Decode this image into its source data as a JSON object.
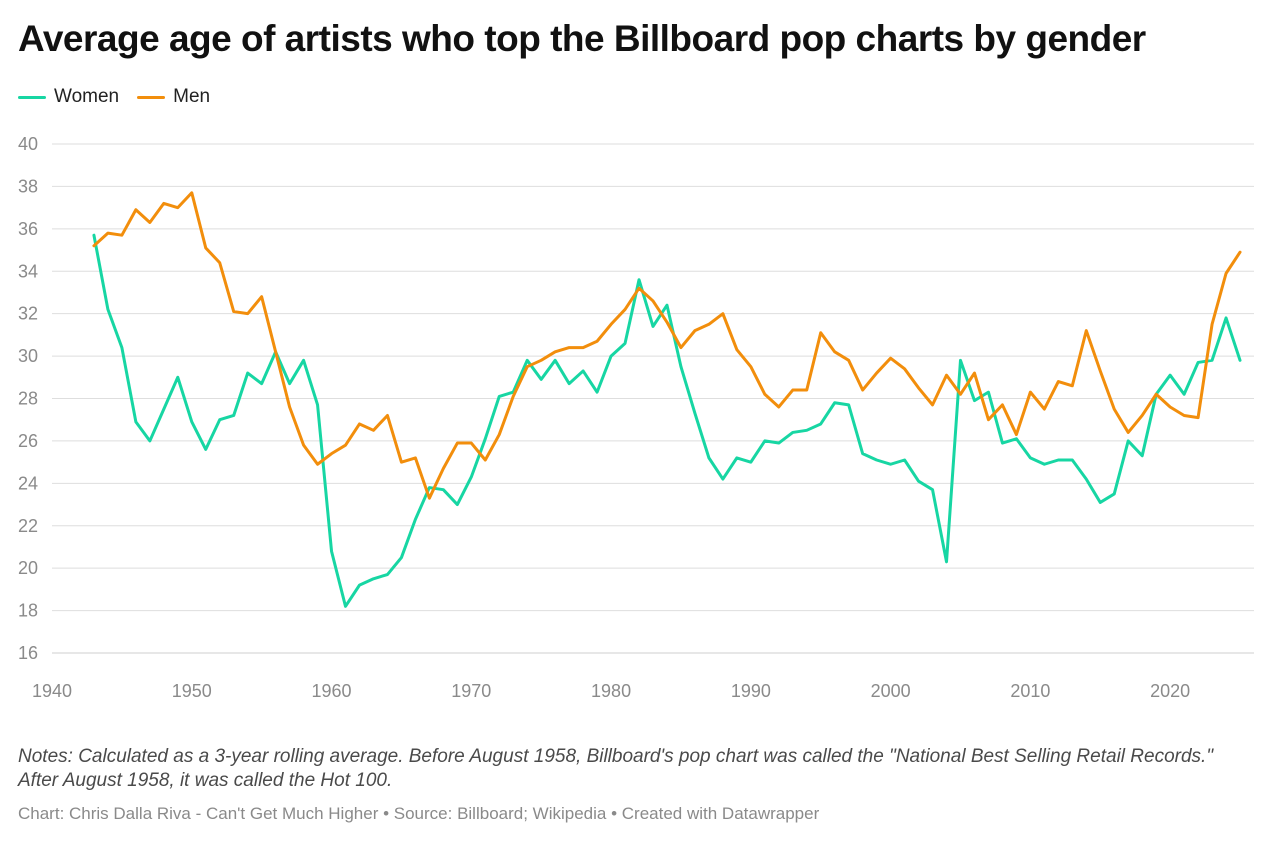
{
  "title": "Average age of artists who top the Billboard pop charts by gender",
  "legend": [
    {
      "label": "Women",
      "color": "#17d6a3"
    },
    {
      "label": "Men",
      "color": "#f28e0c"
    }
  ],
  "notes": "Notes: Calculated as a 3-year rolling average. Before August 1958, Billboard's pop chart was called the \"National Best Selling Retail Records.\" After August 1958, it was called the Hot 100.",
  "credit": "Chart: Chris Dalla Riva - Can't Get Much Higher • Source: Billboard; Wikipedia • Created with Datawrapper",
  "chart_data": {
    "type": "line",
    "title": "Average age of artists who top the Billboard pop charts by gender",
    "xlabel": "",
    "ylabel": "",
    "xlim": [
      1940,
      2026
    ],
    "ylim": [
      16,
      40
    ],
    "x_ticks": [
      1940,
      1950,
      1960,
      1970,
      1980,
      1990,
      2000,
      2010,
      2020
    ],
    "y_ticks": [
      16,
      18,
      20,
      22,
      24,
      26,
      28,
      30,
      32,
      34,
      36,
      38,
      40
    ],
    "grid": "horizontal",
    "legend_position": "top-left",
    "series": [
      {
        "name": "Women",
        "color": "#17d6a3",
        "x": [
          1943,
          1944,
          1945,
          1946,
          1947,
          1948,
          1949,
          1950,
          1951,
          1952,
          1953,
          1954,
          1955,
          1956,
          1957,
          1958,
          1959,
          1960,
          1961,
          1962,
          1963,
          1964,
          1965,
          1966,
          1967,
          1968,
          1969,
          1970,
          1971,
          1972,
          1973,
          1974,
          1975,
          1976,
          1977,
          1978,
          1979,
          1980,
          1981,
          1982,
          1983,
          1984,
          1985,
          1986,
          1987,
          1988,
          1989,
          1990,
          1991,
          1992,
          1993,
          1994,
          1995,
          1996,
          1997,
          1998,
          1999,
          2000,
          2001,
          2002,
          2003,
          2004,
          2005,
          2006,
          2007,
          2008,
          2009,
          2010,
          2011,
          2012,
          2013,
          2014,
          2015,
          2016,
          2017,
          2018,
          2019,
          2020,
          2021,
          2022,
          2023,
          2024,
          2025
        ],
        "values": [
          35.7,
          32.2,
          30.4,
          26.9,
          26.0,
          27.5,
          29.0,
          26.9,
          25.6,
          27.0,
          27.2,
          29.2,
          28.7,
          30.2,
          28.7,
          29.8,
          27.7,
          20.8,
          18.2,
          19.2,
          19.5,
          19.7,
          20.5,
          22.3,
          23.8,
          23.7,
          23.0,
          24.3,
          26.1,
          28.1,
          28.3,
          29.8,
          28.9,
          29.8,
          28.7,
          29.3,
          28.3,
          30.0,
          30.6,
          33.6,
          31.4,
          32.4,
          29.5,
          27.3,
          25.2,
          24.2,
          25.2,
          25.0,
          26.0,
          25.9,
          26.4,
          26.5,
          26.8,
          27.8,
          27.7,
          25.4,
          25.1,
          24.9,
          25.1,
          24.1,
          23.7,
          20.3,
          29.8,
          27.9,
          28.3,
          25.9,
          26.1,
          25.2,
          24.9,
          25.1,
          25.1,
          24.2,
          23.1,
          23.5,
          26.0,
          25.3,
          28.2,
          29.1,
          28.2,
          29.7,
          29.8,
          31.8,
          29.8
        ]
      },
      {
        "name": "Men",
        "color": "#f28e0c",
        "x": [
          1943,
          1944,
          1945,
          1946,
          1947,
          1948,
          1949,
          1950,
          1951,
          1952,
          1953,
          1954,
          1955,
          1956,
          1957,
          1958,
          1959,
          1960,
          1961,
          1962,
          1963,
          1964,
          1965,
          1966,
          1967,
          1968,
          1969,
          1970,
          1971,
          1972,
          1973,
          1974,
          1975,
          1976,
          1977,
          1978,
          1979,
          1980,
          1981,
          1982,
          1983,
          1984,
          1985,
          1986,
          1987,
          1988,
          1989,
          1990,
          1991,
          1992,
          1993,
          1994,
          1995,
          1996,
          1997,
          1998,
          1999,
          2000,
          2001,
          2002,
          2003,
          2004,
          2005,
          2006,
          2007,
          2008,
          2009,
          2010,
          2011,
          2012,
          2013,
          2014,
          2015,
          2016,
          2017,
          2018,
          2019,
          2020,
          2021,
          2022,
          2023,
          2024,
          2025
        ],
        "values": [
          35.2,
          35.8,
          35.7,
          36.9,
          36.3,
          37.2,
          37.0,
          37.7,
          35.1,
          34.4,
          32.1,
          32.0,
          32.8,
          30.2,
          27.6,
          25.8,
          24.9,
          25.4,
          25.8,
          26.8,
          26.5,
          27.2,
          25.0,
          25.2,
          23.3,
          24.7,
          25.9,
          25.9,
          25.1,
          26.3,
          28.1,
          29.5,
          29.8,
          30.2,
          30.4,
          30.4,
          30.7,
          31.5,
          32.2,
          33.2,
          32.6,
          31.6,
          30.4,
          31.2,
          31.5,
          32.0,
          30.3,
          29.5,
          28.2,
          27.6,
          28.4,
          28.4,
          31.1,
          30.2,
          29.8,
          28.4,
          29.2,
          29.9,
          29.4,
          28.5,
          27.7,
          29.1,
          28.2,
          29.2,
          27.0,
          27.7,
          26.3,
          28.3,
          27.5,
          28.8,
          28.6,
          31.2,
          29.3,
          27.5,
          26.4,
          27.2,
          28.2,
          27.6,
          27.2,
          27.1,
          31.5,
          33.9,
          34.9
        ]
      }
    ]
  }
}
